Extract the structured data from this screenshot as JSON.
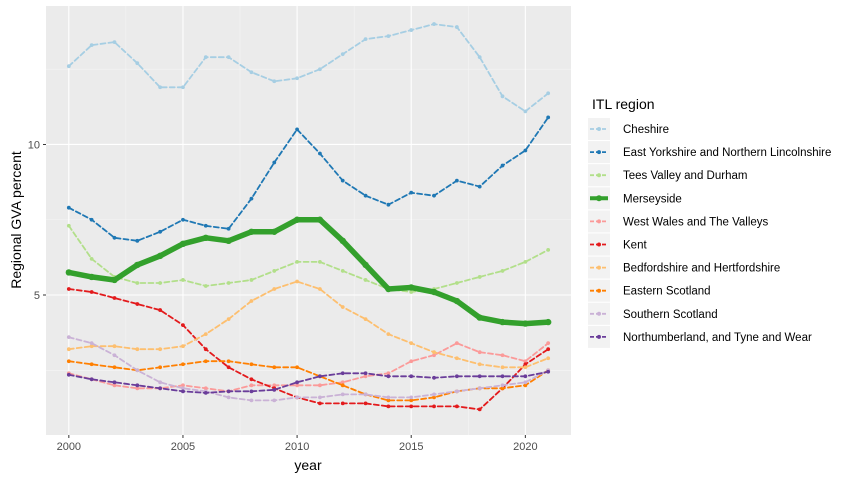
{
  "chart_data": {
    "type": "line",
    "title": "",
    "xlabel": "year",
    "ylabel": "Regional GVA percent",
    "xlim": [
      1999.0,
      2022.0
    ],
    "ylim": [
      0.35,
      14.6
    ],
    "x_ticks": [
      2000,
      2005,
      2010,
      2015,
      2020
    ],
    "y_ticks": [
      5,
      10
    ],
    "grid": true,
    "background": "#EBEBEB",
    "legend": {
      "title": "ITL region",
      "position": "right"
    },
    "x": [
      2000,
      2001,
      2002,
      2003,
      2004,
      2005,
      2006,
      2007,
      2008,
      2009,
      2010,
      2011,
      2012,
      2013,
      2014,
      2015,
      2016,
      2017,
      2018,
      2019,
      2020,
      2021
    ],
    "series": [
      {
        "name": "Cheshire",
        "color": "#A6CEE3",
        "line_style": "dashed",
        "values": [
          12.6,
          13.3,
          13.4,
          12.7,
          11.9,
          11.9,
          12.9,
          12.9,
          12.4,
          12.1,
          12.2,
          12.5,
          13.0,
          13.5,
          13.6,
          13.8,
          14.0,
          13.9,
          12.9,
          11.6,
          11.1,
          11.7
        ]
      },
      {
        "name": "East Yorkshire and Northern Lincolnshire",
        "color": "#1F78B4",
        "line_style": "dashed",
        "values": [
          7.9,
          7.5,
          6.9,
          6.8,
          7.1,
          7.5,
          7.3,
          7.2,
          8.2,
          9.4,
          10.5,
          9.7,
          8.8,
          8.3,
          8.0,
          8.4,
          8.3,
          8.8,
          8.6,
          9.3,
          9.8,
          10.9
        ]
      },
      {
        "name": "Tees Valley and Durham",
        "color": "#B2DF8A",
        "line_style": "dashed",
        "values": [
          7.3,
          6.2,
          5.6,
          5.4,
          5.4,
          5.5,
          5.3,
          5.4,
          5.5,
          5.8,
          6.1,
          6.1,
          5.8,
          5.5,
          5.2,
          5.1,
          5.2,
          5.4,
          5.6,
          5.8,
          6.1,
          6.5
        ]
      },
      {
        "name": "Merseyside",
        "color": "#33A02C",
        "line_style": "solid",
        "values": [
          5.75,
          5.6,
          5.5,
          6.0,
          6.3,
          6.7,
          6.9,
          6.8,
          7.1,
          7.1,
          7.5,
          7.5,
          6.8,
          6.0,
          5.2,
          5.25,
          5.1,
          4.8,
          4.25,
          4.1,
          4.05,
          4.1
        ]
      },
      {
        "name": "West Wales and The Valleys",
        "color": "#FB9A99",
        "line_style": "dashed",
        "values": [
          2.4,
          2.2,
          2.0,
          1.9,
          1.9,
          2.0,
          1.9,
          1.8,
          2.0,
          2.0,
          2.0,
          2.0,
          2.1,
          2.3,
          2.4,
          2.8,
          3.0,
          3.4,
          3.1,
          3.0,
          2.8,
          3.4
        ]
      },
      {
        "name": "Kent",
        "color": "#E31A1C",
        "line_style": "dashed",
        "values": [
          5.2,
          5.1,
          4.9,
          4.7,
          4.5,
          4.0,
          3.2,
          2.6,
          2.2,
          1.9,
          1.6,
          1.4,
          1.4,
          1.4,
          1.3,
          1.3,
          1.3,
          1.3,
          1.2,
          1.9,
          2.7,
          3.2
        ]
      },
      {
        "name": "Bedfordshire and Hertfordshire",
        "color": "#FDBF6F",
        "line_style": "dashed",
        "values": [
          3.2,
          3.3,
          3.3,
          3.2,
          3.2,
          3.3,
          3.7,
          4.2,
          4.8,
          5.2,
          5.45,
          5.2,
          4.6,
          4.2,
          3.7,
          3.4,
          3.1,
          2.9,
          2.7,
          2.6,
          2.6,
          2.9
        ]
      },
      {
        "name": "Eastern Scotland",
        "color": "#FF7F00",
        "line_style": "dashed",
        "values": [
          2.8,
          2.7,
          2.6,
          2.5,
          2.6,
          2.7,
          2.8,
          2.8,
          2.7,
          2.6,
          2.6,
          2.3,
          2.0,
          1.7,
          1.5,
          1.5,
          1.6,
          1.8,
          1.9,
          1.9,
          2.0,
          2.5
        ]
      },
      {
        "name": "Southern Scotland",
        "color": "#CAB2D6",
        "line_style": "dashed",
        "values": [
          3.6,
          3.4,
          3.0,
          2.5,
          2.1,
          1.9,
          1.8,
          1.6,
          1.5,
          1.5,
          1.6,
          1.6,
          1.7,
          1.7,
          1.6,
          1.6,
          1.7,
          1.8,
          1.9,
          2.0,
          2.1,
          2.5
        ]
      },
      {
        "name": "Northumberland, and Tyne and Wear",
        "color": "#6A3D9A",
        "line_style": "dashed",
        "values": [
          2.35,
          2.2,
          2.1,
          2.0,
          1.9,
          1.8,
          1.75,
          1.8,
          1.8,
          1.85,
          2.1,
          2.3,
          2.4,
          2.4,
          2.3,
          2.3,
          2.25,
          2.3,
          2.3,
          2.3,
          2.3,
          2.45
        ]
      }
    ]
  }
}
